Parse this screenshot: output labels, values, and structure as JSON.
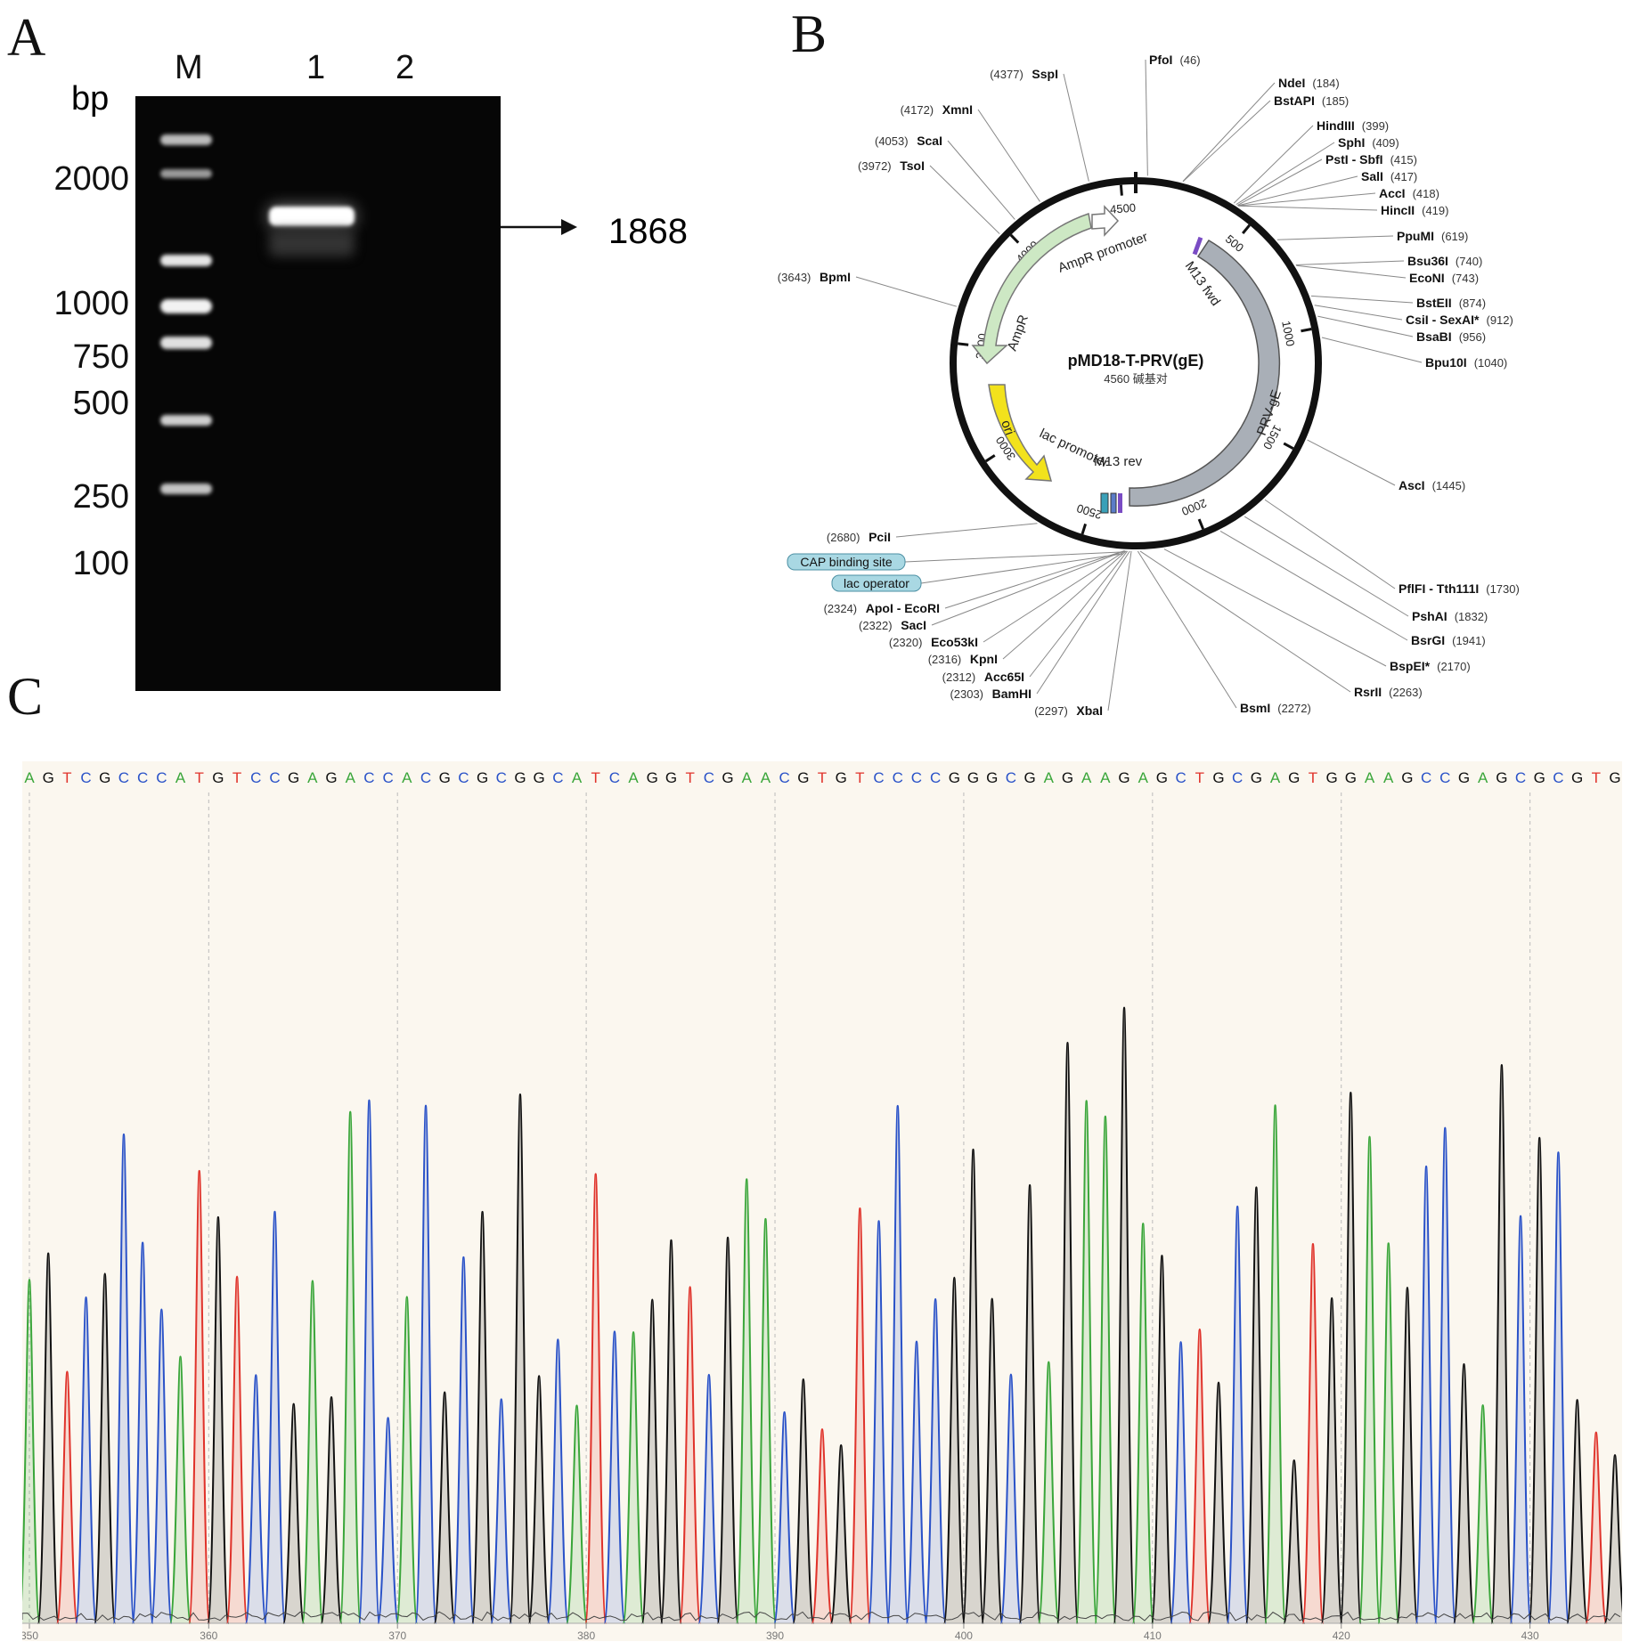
{
  "figure": {
    "panel_labels": [
      "A",
      "B",
      "C"
    ]
  },
  "gel": {
    "lane_labels": [
      "M",
      "1",
      "2"
    ],
    "unit": "bp",
    "marker_sizes": [
      "2000",
      "1000",
      "750",
      "500",
      "250",
      "100"
    ],
    "band_annotation": "1868",
    "colors": {
      "gel": "#060606",
      "band": "#ffffff"
    }
  },
  "plasmid": {
    "name": "pMD18-T-PRV(gE)",
    "size_label": "4560 碱基对",
    "scale_labels": [
      "4500",
      "500",
      "1000",
      "1500",
      "2000",
      "2500",
      "3000",
      "3500",
      "4000"
    ],
    "features": [
      "AmpR promoter",
      "AmpR",
      "ori",
      "lac promoter",
      "M13 rev",
      "M13 fwd",
      "PRV-gE"
    ],
    "boxed_features": [
      "CAP binding site",
      "lac operator"
    ],
    "sites_right": [
      {
        "name": "PfoI",
        "pos": "(46)"
      },
      {
        "name": "NdeI",
        "pos": "(184)"
      },
      {
        "name": "BstAPI",
        "pos": "(185)"
      },
      {
        "name": "HindIII",
        "pos": "(399)"
      },
      {
        "name": "SphI",
        "pos": "(409)"
      },
      {
        "name": "PstI - SbfI",
        "pos": "(415)"
      },
      {
        "name": "SalI",
        "pos": "(417)"
      },
      {
        "name": "AccI",
        "pos": "(418)"
      },
      {
        "name": "HincII",
        "pos": "(419)"
      },
      {
        "name": "PpuMI",
        "pos": "(619)"
      },
      {
        "name": "Bsu36I",
        "pos": "(740)"
      },
      {
        "name": "EcoNI",
        "pos": "(743)"
      },
      {
        "name": "BstEII",
        "pos": "(874)"
      },
      {
        "name": "CsiI - SexAI*",
        "pos": "(912)"
      },
      {
        "name": "BsaBI",
        "pos": "(956)"
      },
      {
        "name": "Bpu10I",
        "pos": "(1040)"
      },
      {
        "name": "AscI",
        "pos": "(1445)"
      },
      {
        "name": "PflFI - Tth111I",
        "pos": "(1730)"
      },
      {
        "name": "PshAI",
        "pos": "(1832)"
      },
      {
        "name": "BsrGI",
        "pos": "(1941)"
      },
      {
        "name": "BspEI*",
        "pos": "(2170)"
      },
      {
        "name": "RsrII",
        "pos": "(2263)"
      },
      {
        "name": "BsmI",
        "pos": "(2272)"
      }
    ],
    "sites_left": [
      {
        "name": "SspI",
        "pos": "(4377)"
      },
      {
        "name": "XmnI",
        "pos": "(4172)"
      },
      {
        "name": "ScaI",
        "pos": "(4053)"
      },
      {
        "name": "TsoI",
        "pos": "(3972)"
      },
      {
        "name": "BpmI",
        "pos": "(3643)"
      },
      {
        "name": "PciI",
        "pos": "(2680)"
      },
      {
        "name": "ApoI - EcoRI",
        "pos": "(2324)"
      },
      {
        "name": "SacI",
        "pos": "(2322)"
      },
      {
        "name": "Eco53kI",
        "pos": "(2320)"
      },
      {
        "name": "KpnI",
        "pos": "(2316)"
      },
      {
        "name": "Acc65I",
        "pos": "(2312)"
      },
      {
        "name": "BamHI",
        "pos": "(2303)"
      },
      {
        "name": "XbaI",
        "pos": "(2297)"
      }
    ],
    "colors": {
      "ampr": "#cde8c4",
      "ori": "#f2e21c",
      "prv_ge": "#a9afb7",
      "box": "#a9d8e3"
    }
  },
  "chromatogram": {
    "sequence": "AGTCGCCCATGTCCGAGACCACGCGCGGCATCAGGTCGAACGTGTCCCCGGGCGAGAAGAGCTGCGAGTGGAAGCCGAGCGCGTG",
    "axis_ticks": [
      "350",
      "360",
      "370",
      "380",
      "390",
      "400",
      "410",
      "420",
      "430"
    ],
    "base_colors": {
      "A": "#3aa63a",
      "C": "#2a52c8",
      "G": "#111111",
      "T": "#e0332b"
    },
    "background": "#fbf7ef"
  }
}
